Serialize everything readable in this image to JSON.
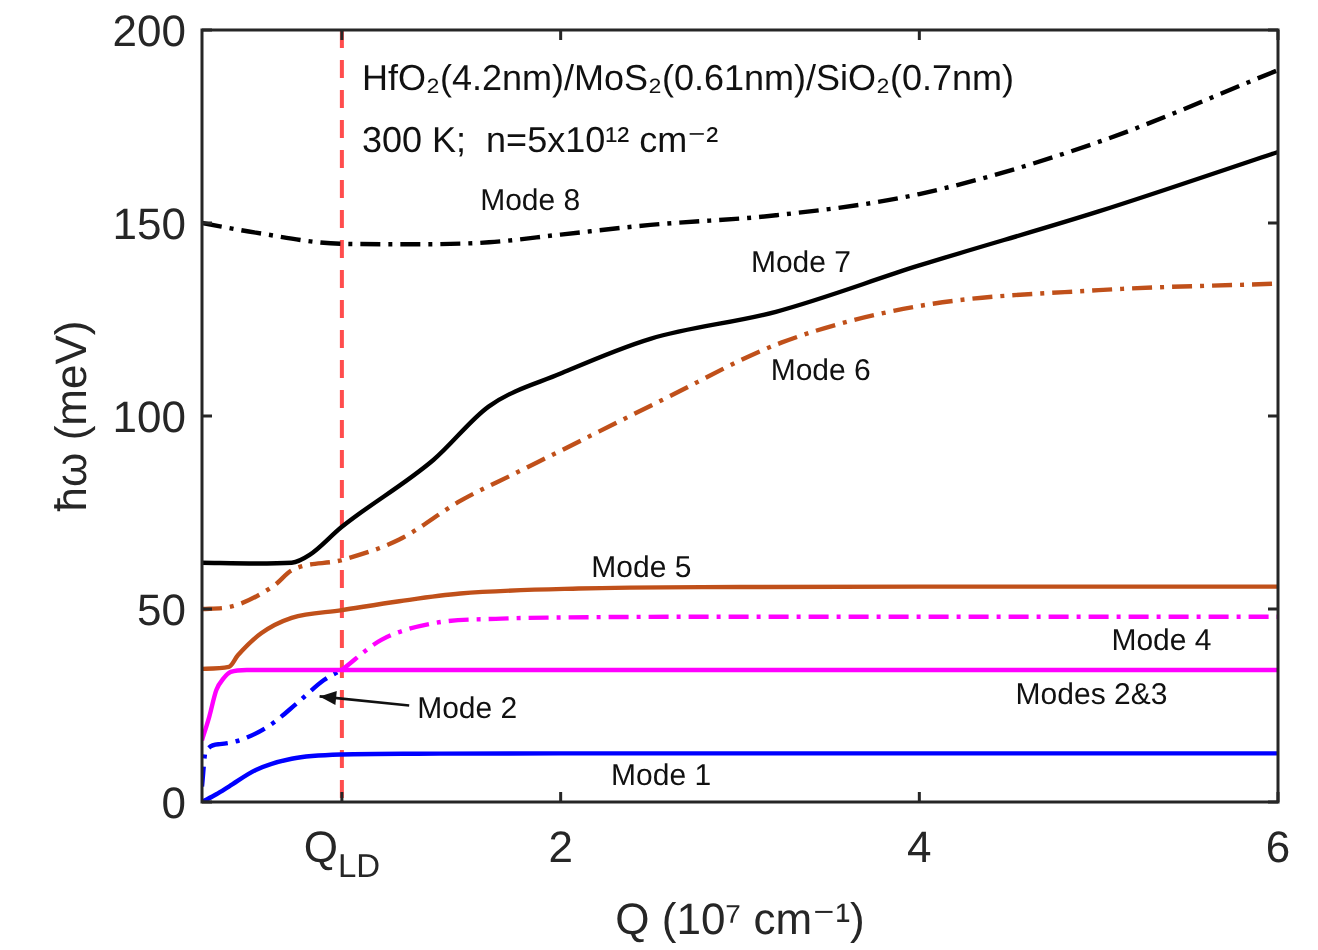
{
  "chart_data": {
    "type": "line",
    "xlabel": "Q (10⁷ cm⁻¹)",
    "ylabel": "ħω (meV)",
    "xlim": [
      0,
      6
    ],
    "xticks": [
      {
        "value": 0.78,
        "label": "Q$_{LD}$"
      },
      2,
      4,
      6
    ],
    "ylim": [
      0,
      200
    ],
    "yticks": [
      0,
      50,
      100,
      150,
      200
    ],
    "grid": false,
    "legend": false,
    "marker": "none",
    "ref_lines": [
      {
        "axis": "x",
        "value": 0.78,
        "color": "#ff4d4d",
        "line_style": "dashed"
      }
    ],
    "annotations": [
      "HfO₂(4.2nm)/MoS₂(0.61nm)/SiO₂(0.7nm)",
      "300 K;  n=5x10¹² cm⁻²"
    ],
    "series": [
      {
        "name": "Mode 1",
        "color": "#0000ff",
        "line_style": "solid",
        "x": [
          0,
          0.08,
          0.15,
          0.3,
          0.5,
          0.78,
          1.2,
          2,
          3,
          4,
          5,
          6
        ],
        "values": [
          0,
          2,
          4,
          8.3,
          11.2,
          12.3,
          12.5,
          12.6,
          12.6,
          12.6,
          12.6,
          12.6
        ]
      },
      {
        "name": "Modes 2&3",
        "color": "#ff00ff",
        "line_style": "solid",
        "x": [
          0,
          0.04,
          0.08,
          0.12,
          0.16,
          0.25,
          1,
          2,
          4,
          6
        ],
        "values": [
          16,
          22,
          29,
          32,
          33.7,
          34.2,
          34.2,
          34.2,
          34.2,
          34.2
        ]
      },
      {
        "name": "Mode 2",
        "color": "#0000ff",
        "line_style": "dashed",
        "x": [
          0,
          0.02,
          0.1,
          0.21,
          0.37,
          0.53,
          0.68,
          0.78
        ],
        "values": [
          4,
          13,
          15,
          16,
          19.6,
          25.6,
          31.6,
          34.2
        ]
      },
      {
        "name": "Mode 4",
        "color": "#ff00ff",
        "line_style": "dashed",
        "x": [
          0.78,
          1,
          1.29,
          1.67,
          2,
          3,
          4,
          5,
          6
        ],
        "values": [
          34.2,
          42,
          46.3,
          47.5,
          47.8,
          48,
          48,
          48,
          48
        ]
      },
      {
        "name": "Mode 5",
        "color": "#c0501a",
        "line_style": "solid",
        "x": [
          0,
          0.15,
          0.2,
          0.33,
          0.5,
          0.78,
          1.1,
          1.44,
          2.1,
          3,
          4,
          6
        ],
        "values": [
          34.5,
          35,
          38,
          43.7,
          47.7,
          49.7,
          52,
          54,
          55.3,
          55.7,
          55.8,
          55.8
        ]
      },
      {
        "name": "Mode 6",
        "color": "#c0501a",
        "line_style": "dashed",
        "x": [
          0,
          0.15,
          0.4,
          0.5,
          0.78,
          1.1,
          1.44,
          1.74,
          2,
          2.56,
          3.23,
          4,
          5,
          6
        ],
        "values": [
          50,
          50.5,
          56,
          60,
          62.7,
          68,
          78,
          85,
          91,
          104,
          119,
          128.5,
          132.6,
          134.3
        ]
      },
      {
        "name": "Mode 7",
        "color": "#000000",
        "line_style": "solid",
        "x": [
          0,
          0.3,
          0.5,
          0.6,
          0.78,
          1.29,
          1.6,
          2,
          2.5,
          3.2,
          4,
          5,
          6
        ],
        "values": [
          62,
          61.8,
          62,
          64,
          71.3,
          88.6,
          102.5,
          111,
          120,
          127,
          139,
          153,
          168.4
        ]
      },
      {
        "name": "Mode 8",
        "color": "#000000",
        "line_style": "dashed",
        "x": [
          0,
          0.3,
          0.78,
          1.2,
          1.6,
          2,
          2.5,
          3.2,
          4,
          5,
          6
        ],
        "values": [
          150,
          147.5,
          144.6,
          144.5,
          145,
          147,
          149.5,
          152,
          157.5,
          171,
          189.6
        ]
      }
    ]
  }
}
